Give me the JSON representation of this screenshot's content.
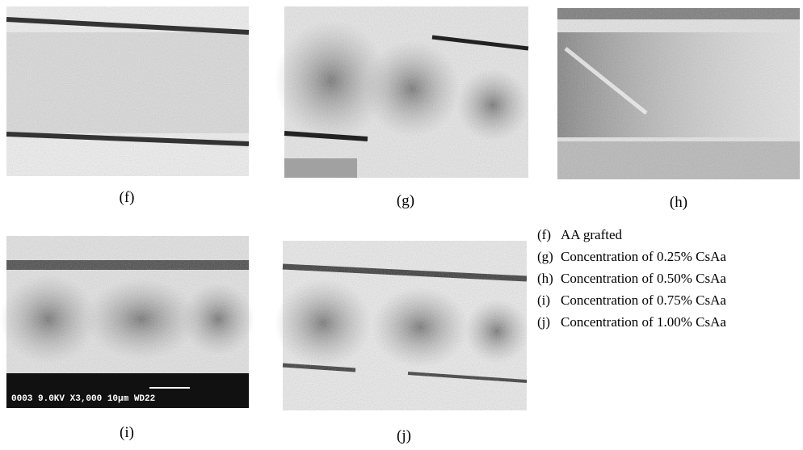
{
  "panels": [
    {
      "label": "(f)"
    },
    {
      "label": "(g)"
    },
    {
      "label": "(h)"
    },
    {
      "label": "(i)",
      "overlay": "0003 9.0KV  X3,000  10μm WD22"
    },
    {
      "label": "(j)"
    }
  ],
  "legend": [
    {
      "key": "(f)",
      "text": "AA grafted"
    },
    {
      "key": "(g)",
      "text": "Concentration of 0.25% CsAa"
    },
    {
      "key": "(h)",
      "text": "Concentration of 0.50% CsAa"
    },
    {
      "key": "(i)",
      "text": "Concentration of 0.75% CsAa"
    },
    {
      "key": "(j)",
      "text": "Concentration of 1.00% CsAa"
    }
  ]
}
